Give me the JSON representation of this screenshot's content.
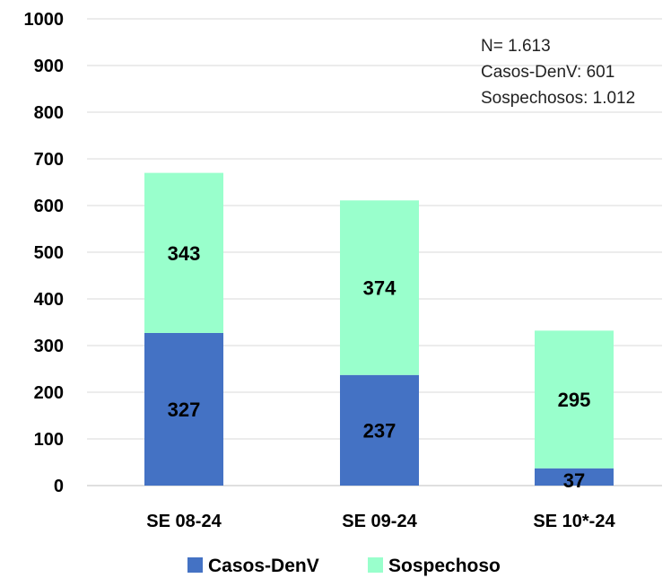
{
  "chart_data": {
    "type": "bar",
    "stacked": true,
    "title": "",
    "xlabel": "",
    "ylabel": "",
    "categories": [
      "SE 08-24",
      "SE 09-24",
      "SE 10*-24"
    ],
    "series": [
      {
        "name": "Casos-DenV",
        "values": [
          327,
          237,
          37
        ],
        "color": "#4472c4"
      },
      {
        "name": "Sospechoso",
        "values": [
          343,
          374,
          295
        ],
        "color": "#99ffcc"
      }
    ],
    "ylim": [
      0,
      1000
    ],
    "yticks": [
      0,
      100,
      200,
      300,
      400,
      500,
      600,
      700,
      800,
      900,
      1000
    ],
    "grid": true,
    "legend_position": "bottom",
    "annotations": [
      "N= 1.613",
      "Casos-DenV: 601",
      "Sospechosos: 1.012"
    ]
  }
}
